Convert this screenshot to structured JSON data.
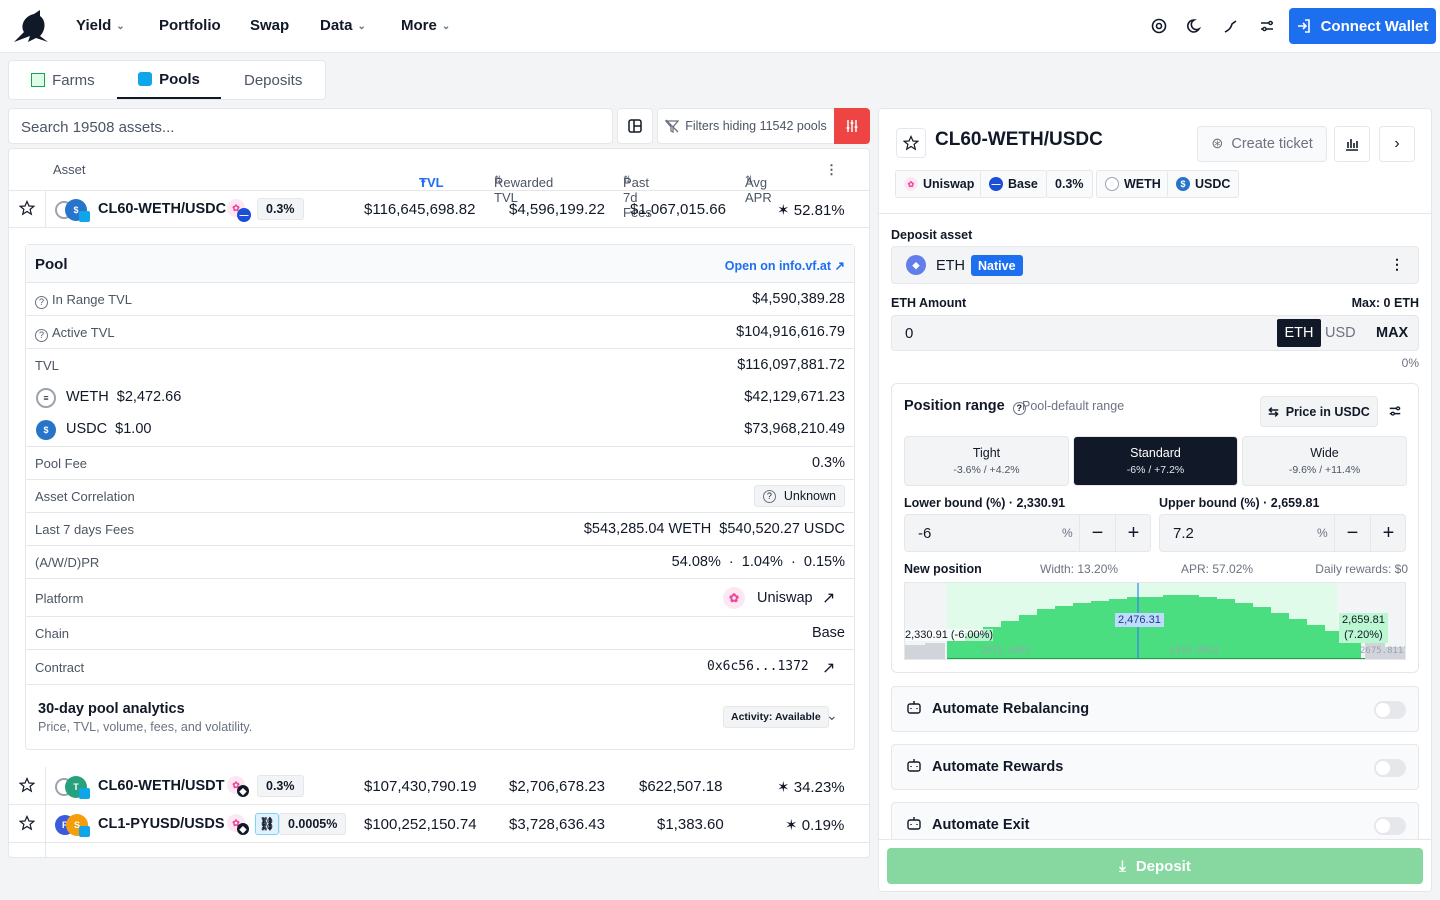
{
  "nav": {
    "items": [
      "Yield",
      "Portfolio",
      "Swap",
      "Data",
      "More"
    ],
    "connect_label": "Connect Wallet"
  },
  "tabs": [
    "Farms",
    "Pools",
    "Deposits"
  ],
  "search": {
    "placeholder": "Search 19508 assets..."
  },
  "filters_label": "Filters hiding 11542 pools",
  "table": {
    "headers": {
      "asset": "Asset",
      "tvl": "TVL",
      "rewarded_tvl": "Rewarded TVL",
      "fees": "Past 7d Fees",
      "apr": "Avg APR"
    },
    "rows": [
      {
        "name": "CL60-WETH/USDC",
        "fee": "0.3%",
        "tvl": "$116,645,698.82",
        "rewarded_tvl": "$4,596,199.22",
        "fees": "$1,067,015.66",
        "apr": "52.81%"
      },
      {
        "name": "CL60-WETH/USDT",
        "fee": "0.3%",
        "tvl": "$107,430,790.19",
        "rewarded_tvl": "$2,706,678.23",
        "fees": "$622,507.18",
        "apr": "34.23%"
      },
      {
        "name": "CL1-PYUSD/USDS",
        "fee": "0.0005%",
        "tvl": "$100,252,150.74",
        "rewarded_tvl": "$3,728,636.43",
        "fees": "$1,383.60",
        "apr": "0.19%"
      }
    ]
  },
  "detail": {
    "title": "Pool",
    "open_link": "Open on info.vf.at",
    "in_range_label": "In Range TVL",
    "in_range_value": "$4,590,389.28",
    "active_label": "Active TVL",
    "active_value": "$104,916,616.79",
    "tvl_label": "TVL",
    "tvl_value": "$116,097,881.72",
    "weth_label": "WETH",
    "weth_price": "$2,472.66",
    "weth_value": "$42,129,671.23",
    "usdc_label": "USDC",
    "usdc_price": "$1.00",
    "usdc_value": "$73,968,210.49",
    "fee_label": "Pool Fee",
    "fee_value": "0.3%",
    "corr_label": "Asset Correlation",
    "corr_value": "Unknown",
    "fees7_label": "Last 7 days Fees",
    "fees7_value": "$543,285.04 WETH  $540,520.27 USDC",
    "pr_label": "(A/W/D)PR",
    "pr_a": "54.08%",
    "pr_w": "1.04%",
    "pr_d": "0.15%",
    "platform_label": "Platform",
    "platform_value": "Uniswap",
    "chain_label": "Chain",
    "chain_value": "Base",
    "contract_label": "Contract",
    "contract_value": "0x6c56...1372",
    "analytics_title": "30-day pool analytics",
    "analytics_sub": "Price, TVL, volume, fees, and volatility.",
    "analytics_badge": "Activity: Available"
  },
  "panel": {
    "title": "CL60-WETH/USDC",
    "create_ticket": "Create ticket",
    "chips": [
      "Uniswap",
      "Base",
      "0.3%",
      "WETH",
      "USDC"
    ],
    "deposit_asset_label": "Deposit asset",
    "asset": "ETH",
    "asset_badge": "Native",
    "amount_label": "ETH Amount",
    "max_label": "Max: 0 ETH",
    "amount_value": "0",
    "units": [
      "ETH",
      "USD",
      "MAX"
    ],
    "percent": "0%",
    "range_label": "Position range",
    "range_sub": "Pool-default range",
    "price_in": "Price in USDC",
    "presets": [
      {
        "name": "Tight",
        "range": "-3.6% / +4.2%"
      },
      {
        "name": "Standard",
        "range": "-6% / +7.2%"
      },
      {
        "name": "Wide",
        "range": "-9.6% / +11.4%"
      }
    ],
    "lower_label": "Lower bound (%) · 2,330.91",
    "lower_value": "-6",
    "upper_label": "Upper bound (%) · 2,659.81",
    "upper_value": "7.2",
    "pct_sign": "%",
    "new_position": "New position",
    "width": "Width: 13.20%",
    "apr": "APR: 57.02%",
    "daily": "Daily rewards: $0",
    "chart": {
      "current": "2,476.31",
      "lower": "2,330.91 (-6.00%)",
      "upper_price": "2,659.81",
      "upper_pct": "(7.20%)",
      "ticks": [
        "2373.2463",
        "2519.9921",
        "2675.8117"
      ]
    },
    "automations": [
      "Automate Rebalancing",
      "Automate Rewards",
      "Automate Exit"
    ],
    "deposit_label": "Deposit"
  }
}
